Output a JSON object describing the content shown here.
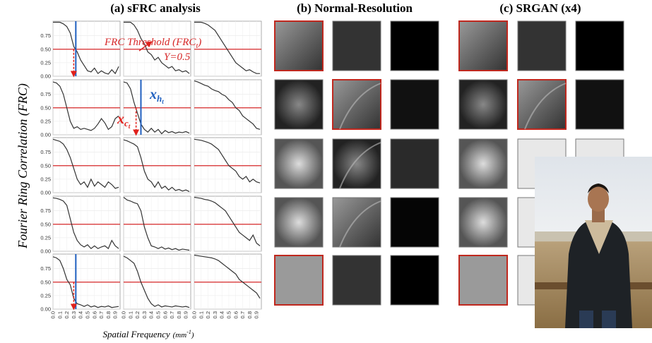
{
  "figure": {
    "titles": [
      "(a) sFRC analysis",
      "(b) Normal-Resolution",
      "(c) SRGAN (x4)"
    ],
    "y_label": "Fourier Ring Correlation (FRC)",
    "x_label": {
      "main": "Spatial Frequency",
      "unit": "(mm",
      "exp": "-1",
      "close": ")"
    },
    "annotations": {
      "threshold": {
        "text": "FRC Threshold (FRC",
        "sub": "t",
        "close": ")"
      },
      "threshold_value": "Y=0.5",
      "x_h": {
        "text": "x",
        "sub": "h",
        "subsub": "t"
      },
      "x_c": {
        "text": "x",
        "sub": "c",
        "subsub": "t"
      }
    }
  },
  "axes": {
    "x": [
      0,
      0.05,
      0.1,
      0.15,
      0.2,
      0.25,
      0.3,
      0.35,
      0.4,
      0.45,
      0.5,
      0.55,
      0.6,
      0.65,
      0.7,
      0.75,
      0.8,
      0.85,
      0.9,
      0.95
    ],
    "xlim": [
      0,
      0.97
    ],
    "ylim": [
      0,
      1.02
    ],
    "xticks": [
      {
        "value": 0,
        "label": "0.0"
      },
      {
        "value": 0.1,
        "label": "0.1"
      },
      {
        "value": 0.2,
        "label": "0.2"
      },
      {
        "value": 0.3,
        "label": "0.3"
      },
      {
        "value": 0.4,
        "label": "0.4"
      },
      {
        "value": 0.5,
        "label": "0.5"
      },
      {
        "value": 0.6,
        "label": "0.6"
      },
      {
        "value": 0.7,
        "label": "0.7"
      },
      {
        "value": 0.8,
        "label": "0.8"
      },
      {
        "value": 0.9,
        "label": "0.9"
      }
    ],
    "yticks": [
      {
        "value": 0,
        "label": "0.00"
      },
      {
        "value": 0.25,
        "label": "0.25"
      },
      {
        "value": 0.5,
        "label": "0.50"
      },
      {
        "value": 0.75,
        "label": "0.75"
      }
    ],
    "threshold": 0.5,
    "line_color": "#333333",
    "threshold_color": "#d62728",
    "marker_h_color": "#1f5fbf",
    "marker_c_color": "#e0201b"
  },
  "chart_data": [
    {
      "type": "line",
      "values": [
        1,
        1,
        1,
        0.97,
        0.92,
        0.8,
        0.55,
        0.45,
        0.3,
        0.2,
        0.1,
        0.08,
        0.15,
        0.05,
        0.1,
        0.06,
        0.04,
        0.12,
        0.05,
        0.18
      ],
      "x_h": 0.33,
      "x_c": 0.3
    },
    {
      "type": "line",
      "values": [
        1,
        1,
        1,
        0.95,
        0.85,
        0.7,
        0.6,
        0.45,
        0.4,
        0.3,
        0.35,
        0.25,
        0.2,
        0.15,
        0.18,
        0.1,
        0.12,
        0.08,
        0.1,
        0.05
      ]
    },
    {
      "type": "line",
      "values": [
        1,
        1,
        1,
        0.98,
        0.95,
        0.9,
        0.85,
        0.75,
        0.65,
        0.55,
        0.45,
        0.35,
        0.25,
        0.2,
        0.15,
        0.1,
        0.12,
        0.08,
        0.05,
        0.05
      ]
    },
    {
      "type": "line",
      "values": [
        0.98,
        0.96,
        0.9,
        0.75,
        0.5,
        0.25,
        0.12,
        0.15,
        0.1,
        0.12,
        0.1,
        0.08,
        0.12,
        0.2,
        0.3,
        0.22,
        0.1,
        0.15,
        0.3,
        0.35
      ]
    },
    {
      "type": "line",
      "values": [
        0.98,
        0.96,
        0.85,
        0.6,
        0.4,
        0.2,
        0.1,
        0.05,
        0.12,
        0.05,
        0.1,
        0.02,
        0.08,
        0.04,
        0.06,
        0.03,
        0.05,
        0.04,
        0.06,
        0.03
      ],
      "x_h": 0.25,
      "x_c": 0.18
    },
    {
      "type": "line",
      "values": [
        1,
        0.98,
        0.95,
        0.92,
        0.9,
        0.85,
        0.82,
        0.8,
        0.75,
        0.72,
        0.65,
        0.6,
        0.5,
        0.45,
        0.35,
        0.3,
        0.25,
        0.2,
        0.12,
        0.1
      ]
    },
    {
      "type": "line",
      "values": [
        0.99,
        0.97,
        0.95,
        0.9,
        0.8,
        0.65,
        0.45,
        0.25,
        0.15,
        0.2,
        0.1,
        0.25,
        0.12,
        0.2,
        0.15,
        0.1,
        0.2,
        0.15,
        0.08,
        0.1
      ]
    },
    {
      "type": "line",
      "values": [
        0.98,
        0.96,
        0.93,
        0.9,
        0.85,
        0.65,
        0.4,
        0.25,
        0.2,
        0.1,
        0.2,
        0.08,
        0.12,
        0.05,
        0.1,
        0.04,
        0.06,
        0.03,
        0.05,
        0.02
      ]
    },
    {
      "type": "line",
      "values": [
        0.99,
        0.98,
        0.97,
        0.95,
        0.93,
        0.9,
        0.85,
        0.8,
        0.7,
        0.6,
        0.5,
        0.45,
        0.4,
        0.3,
        0.25,
        0.3,
        0.2,
        0.25,
        0.2,
        0.18
      ]
    },
    {
      "type": "line",
      "values": [
        0.99,
        0.98,
        0.96,
        0.93,
        0.85,
        0.6,
        0.35,
        0.2,
        0.12,
        0.08,
        0.12,
        0.05,
        0.1,
        0.05,
        0.08,
        0.1,
        0.05,
        0.2,
        0.1,
        0.05
      ]
    },
    {
      "type": "line",
      "values": [
        1,
        0.95,
        0.93,
        0.9,
        0.88,
        0.75,
        0.45,
        0.25,
        0.1,
        0.08,
        0.05,
        0.08,
        0.04,
        0.06,
        0.03,
        0.05,
        0.02,
        0.04,
        0.03,
        0.02
      ]
    },
    {
      "type": "line",
      "values": [
        1,
        0.99,
        0.98,
        0.96,
        0.95,
        0.93,
        0.9,
        0.85,
        0.8,
        0.75,
        0.65,
        0.55,
        0.45,
        0.35,
        0.3,
        0.25,
        0.2,
        0.3,
        0.15,
        0.1
      ]
    },
    {
      "type": "line",
      "values": [
        0.97,
        0.95,
        0.9,
        0.75,
        0.55,
        0.45,
        0.2,
        0.1,
        0.08,
        0.05,
        0.08,
        0.04,
        0.06,
        0.03,
        0.05,
        0.04,
        0.06,
        0.03,
        0.04,
        0.05
      ],
      "x_h": 0.33,
      "x_c": 0.3
    },
    {
      "type": "line",
      "values": [
        0.98,
        0.95,
        0.9,
        0.85,
        0.7,
        0.5,
        0.35,
        0.2,
        0.1,
        0.05,
        0.08,
        0.04,
        0.06,
        0.05,
        0.04,
        0.06,
        0.05,
        0.04,
        0.05,
        0.03
      ]
    },
    {
      "type": "line",
      "values": [
        1,
        0.99,
        0.98,
        0.97,
        0.96,
        0.95,
        0.93,
        0.9,
        0.85,
        0.8,
        0.75,
        0.7,
        0.65,
        0.55,
        0.5,
        0.45,
        0.4,
        0.35,
        0.3,
        0.2
      ]
    }
  ]
}
